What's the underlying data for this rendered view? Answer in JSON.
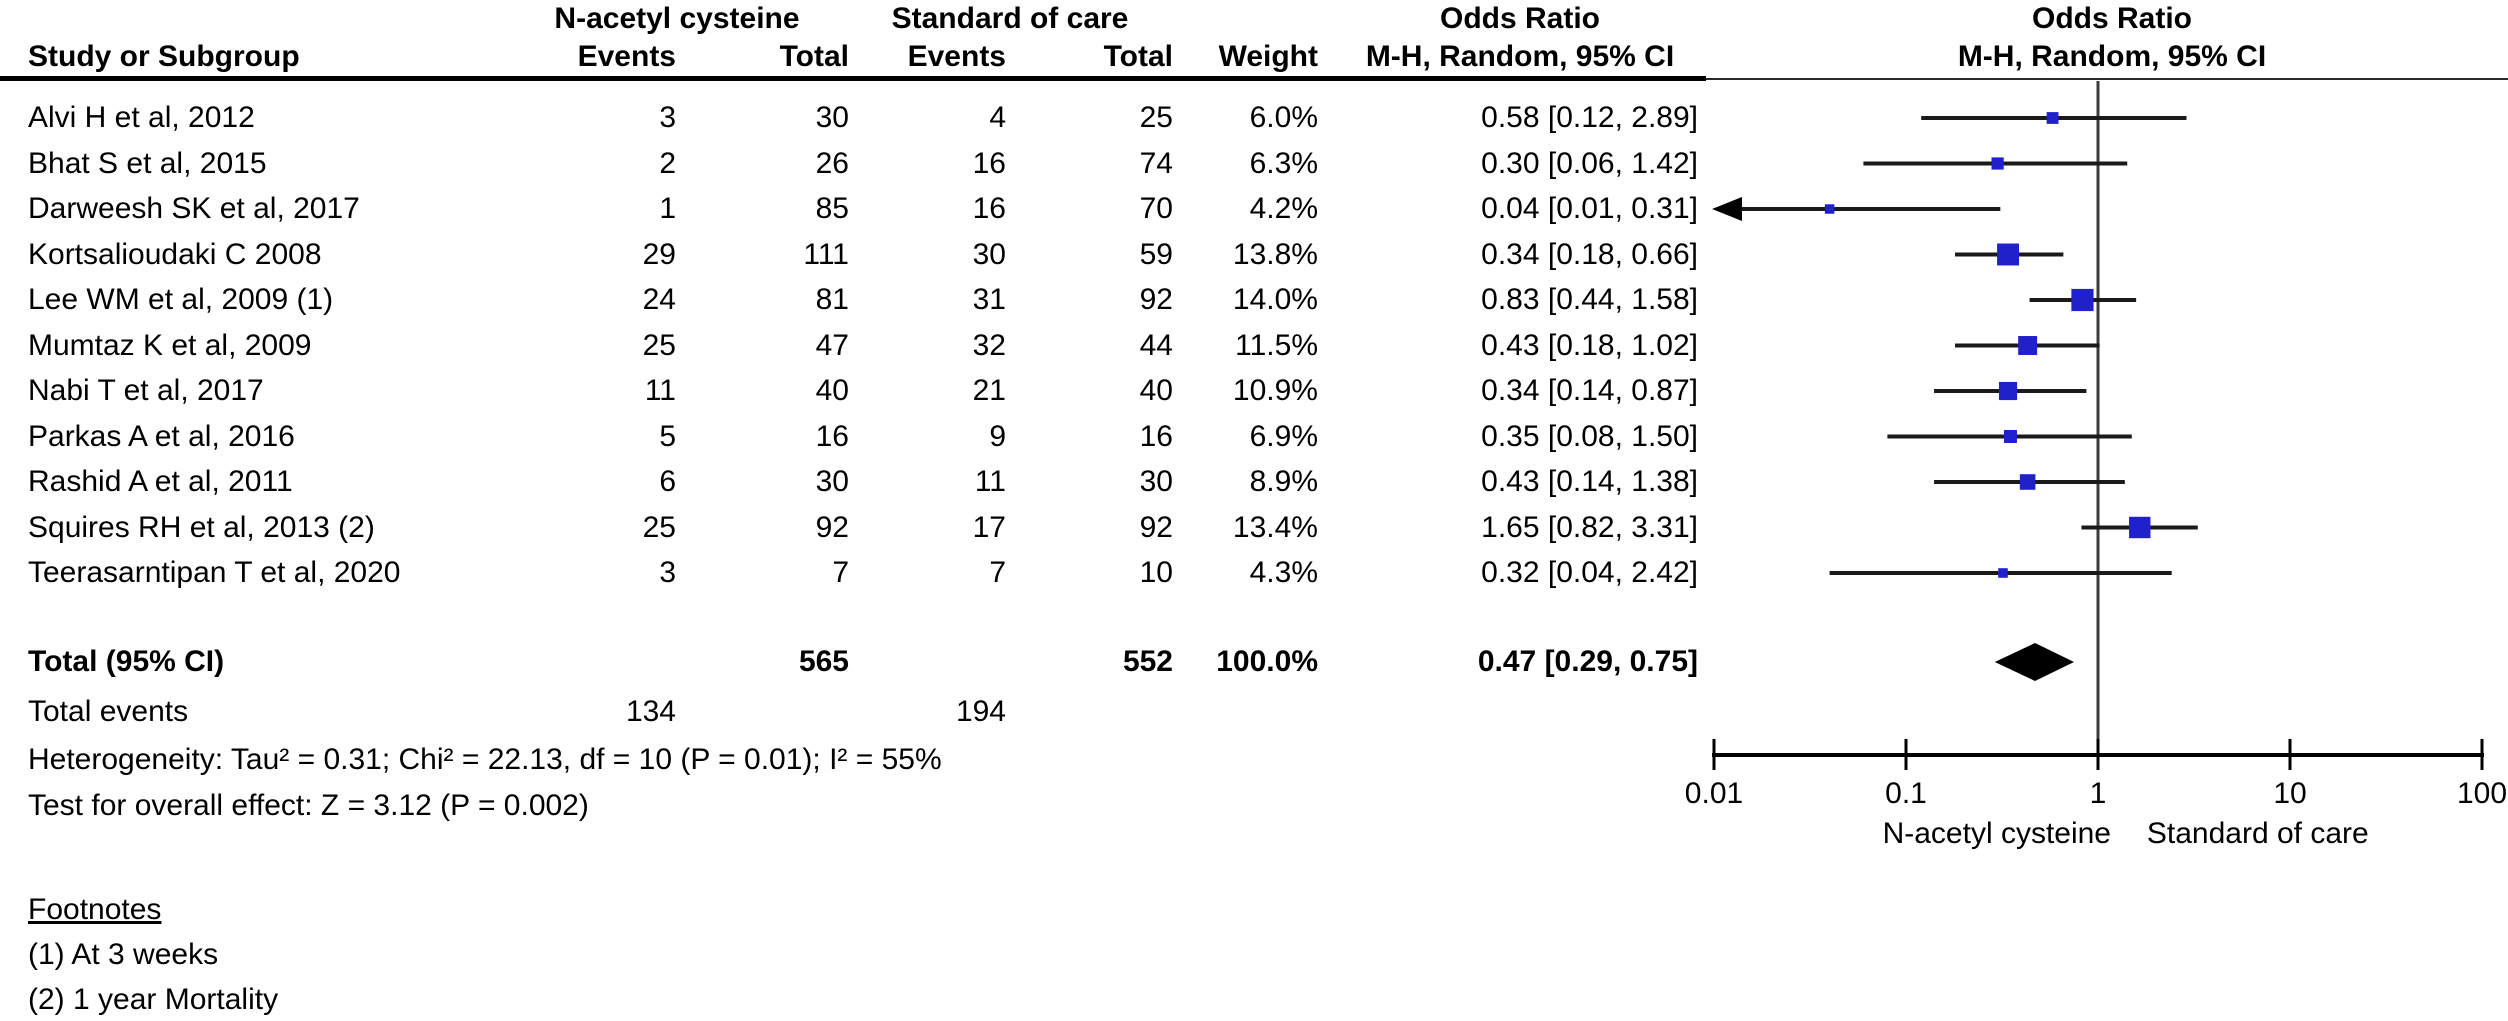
{
  "header": {
    "group1_label": "N-acetyl cysteine",
    "group2_label": "Standard of care",
    "study_col": "Study or Subgroup",
    "events_col": "Events",
    "total_col": "Total",
    "events_col2": "Events",
    "total_col2": "Total",
    "weight_col": "Weight",
    "or_col_title": "Odds Ratio",
    "or_col_subtitle": "M-H, Random, 95% CI",
    "plot_col_title": "Odds Ratio",
    "plot_col_subtitle": "M-H, Random, 95% CI"
  },
  "chart_data": {
    "type": "forest",
    "effect_measure": "Odds Ratio, M-H, Random, 95% CI",
    "x_scale": "log",
    "x_ticks": [
      "0.01",
      "0.1",
      "1",
      "10",
      "100"
    ],
    "x_range": [
      0.01,
      100
    ],
    "axis_left_label": "N-acetyl cysteine",
    "axis_right_label": "Standard of care",
    "marker_color": "#2121cc",
    "studies": [
      {
        "label": "Alvi H et al, 2012",
        "nac_events": "3",
        "nac_total": "30",
        "soc_events": "4",
        "soc_total": "25",
        "weight": "6.0%",
        "weight_value": 6.0,
        "or": 0.58,
        "ci_low": 0.12,
        "ci_high": 2.89,
        "or_text": "0.58 [0.12, 2.89]"
      },
      {
        "label": "Bhat S et al, 2015",
        "nac_events": "2",
        "nac_total": "26",
        "soc_events": "16",
        "soc_total": "74",
        "weight": "6.3%",
        "weight_value": 6.3,
        "or": 0.3,
        "ci_low": 0.06,
        "ci_high": 1.42,
        "or_text": "0.30 [0.06, 1.42]"
      },
      {
        "label": "Darweesh SK et al, 2017",
        "nac_events": "1",
        "nac_total": "85",
        "soc_events": "16",
        "soc_total": "70",
        "weight": "4.2%",
        "weight_value": 4.2,
        "or": 0.04,
        "ci_low": 0.01,
        "ci_high": 0.31,
        "or_text": "0.04 [0.01, 0.31]",
        "arrow_left": true
      },
      {
        "label": "Kortsalioudaki C 2008",
        "nac_events": "29",
        "nac_total": "111",
        "soc_events": "30",
        "soc_total": "59",
        "weight": "13.8%",
        "weight_value": 13.8,
        "or": 0.34,
        "ci_low": 0.18,
        "ci_high": 0.66,
        "or_text": "0.34 [0.18, 0.66]"
      },
      {
        "label": "Lee WM et al, 2009 (1)",
        "nac_events": "24",
        "nac_total": "81",
        "soc_events": "31",
        "soc_total": "92",
        "weight": "14.0%",
        "weight_value": 14.0,
        "or": 0.83,
        "ci_low": 0.44,
        "ci_high": 1.58,
        "or_text": "0.83 [0.44, 1.58]"
      },
      {
        "label": "Mumtaz K et al, 2009",
        "nac_events": "25",
        "nac_total": "47",
        "soc_events": "32",
        "soc_total": "44",
        "weight": "11.5%",
        "weight_value": 11.5,
        "or": 0.43,
        "ci_low": 0.18,
        "ci_high": 1.02,
        "or_text": "0.43 [0.18, 1.02]"
      },
      {
        "label": "Nabi T et al, 2017",
        "nac_events": "11",
        "nac_total": "40",
        "soc_events": "21",
        "soc_total": "40",
        "weight": "10.9%",
        "weight_value": 10.9,
        "or": 0.34,
        "ci_low": 0.14,
        "ci_high": 0.87,
        "or_text": "0.34 [0.14, 0.87]"
      },
      {
        "label": "Parkas A et al, 2016",
        "nac_events": "5",
        "nac_total": "16",
        "soc_events": "9",
        "soc_total": "16",
        "weight": "6.9%",
        "weight_value": 6.9,
        "or": 0.35,
        "ci_low": 0.08,
        "ci_high": 1.5,
        "or_text": "0.35 [0.08, 1.50]"
      },
      {
        "label": "Rashid A et al, 2011",
        "nac_events": "6",
        "nac_total": "30",
        "soc_events": "11",
        "soc_total": "30",
        "weight": "8.9%",
        "weight_value": 8.9,
        "or": 0.43,
        "ci_low": 0.14,
        "ci_high": 1.38,
        "or_text": "0.43 [0.14, 1.38]"
      },
      {
        "label": "Squires RH et al, 2013 (2)",
        "nac_events": "25",
        "nac_total": "92",
        "soc_events": "17",
        "soc_total": "92",
        "weight": "13.4%",
        "weight_value": 13.4,
        "or": 1.65,
        "ci_low": 0.82,
        "ci_high": 3.31,
        "or_text": "1.65 [0.82, 3.31]"
      },
      {
        "label": "Teerasarntipan T et al, 2020",
        "nac_events": "3",
        "nac_total": "7",
        "soc_events": "7",
        "soc_total": "10",
        "weight": "4.3%",
        "weight_value": 4.3,
        "or": 0.32,
        "ci_low": 0.04,
        "ci_high": 2.42,
        "or_text": "0.32 [0.04, 2.42]"
      }
    ],
    "total": {
      "label": "Total (95% CI)",
      "nac_total": "565",
      "soc_total": "552",
      "weight": "100.0%",
      "or": 0.47,
      "ci_low": 0.29,
      "ci_high": 0.75,
      "or_text": "0.47 [0.29, 0.75]"
    }
  },
  "total_events": {
    "label": "Total events",
    "nac": "134",
    "soc": "194"
  },
  "stats": {
    "heterogeneity": "Heterogeneity: Tau² = 0.31; Chi² = 22.13, df = 10 (P = 0.01); I² = 55%",
    "overall_effect": "Test for overall effect: Z = 3.12 (P = 0.002)"
  },
  "footnotes": {
    "title": "Footnotes",
    "items": [
      "(1) At 3 weeks",
      "(2) 1 year Mortality"
    ]
  }
}
